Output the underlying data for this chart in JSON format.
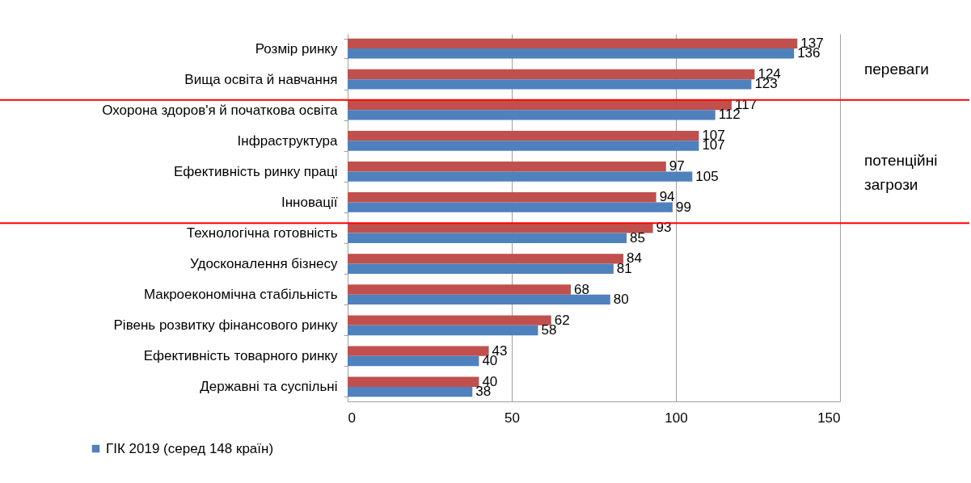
{
  "chart_data": {
    "type": "bar",
    "orientation": "horizontal",
    "categories": [
      "Розмір ринку",
      "Вища освіта й навчання",
      "Охорона здоров'я й початкова освіта",
      "Інфраструктура",
      "Ефективність ринку праці",
      "Інновації",
      "Технологічна готовність",
      "Удосконалення бізнесу",
      "Макроекономічна стабільність",
      "Рівень розвитку фінансового ринку",
      "Ефективність товарного ринку",
      "Державні та суспільні"
    ],
    "series": [
      {
        "color": "#c0504d",
        "values": [
          137,
          124,
          117,
          107,
          97,
          94,
          93,
          84,
          68,
          62,
          43,
          40
        ]
      },
      {
        "name": "ГІК 2019 (серед 148 країн)",
        "color": "#4f81bd",
        "values": [
          136,
          123,
          112,
          107,
          105,
          99,
          85,
          81,
          80,
          58,
          40,
          38
        ]
      }
    ],
    "xlim": [
      0,
      150
    ],
    "xticks": [
      0,
      50,
      100,
      150
    ],
    "grid": "x",
    "legend": "bottom",
    "data_labels": true,
    "ref_lines": [
      {
        "axis": "y",
        "value": "Охорона здоров'я й початкова освіта",
        "color": "#ff0000"
      },
      {
        "axis": "y",
        "value": "Технологічна готовність",
        "color": "#ff0000"
      }
    ],
    "annotations": [
      "переваги",
      "потенційні загрози"
    ]
  }
}
